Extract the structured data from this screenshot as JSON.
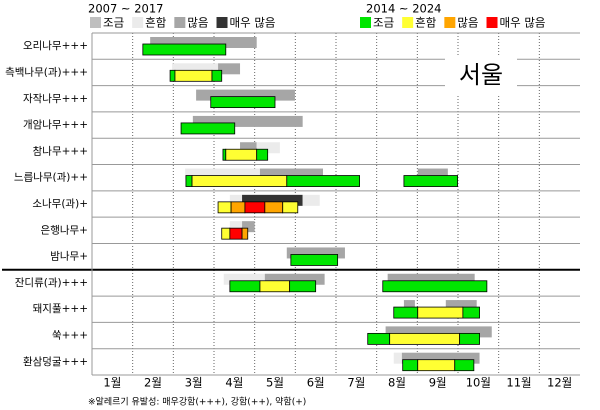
{
  "chart_data": {
    "type": "pollen-calendar",
    "legends": [
      {
        "title": "2007 ~ 2017",
        "items": [
          {
            "name": "조금",
            "color": "#bfbfbf"
          },
          {
            "name": "흔함",
            "color": "#ebebeb"
          },
          {
            "name": "많음",
            "color": "#a6a6a6"
          },
          {
            "name": "매우 많음",
            "color": "#333333"
          }
        ]
      },
      {
        "title": "2014 ~ 2024",
        "items": [
          {
            "name": "조금",
            "color": "#00e600"
          },
          {
            "name": "흔함",
            "color": "#ffff33"
          },
          {
            "name": "많음",
            "color": "#ffa500"
          },
          {
            "name": "매우 많음",
            "color": "#ff0000"
          }
        ]
      }
    ],
    "annotation": "서울",
    "footnote": "※알레르기 유발성: 매우강함(+++), 강함(++), 약함(+)",
    "xlim": [
      1,
      13
    ],
    "xticks": [
      {
        "value": 1.5,
        "label": "1월"
      },
      {
        "value": 2.5,
        "label": "2월"
      },
      {
        "value": 3.5,
        "label": "3월"
      },
      {
        "value": 4.5,
        "label": "4월"
      },
      {
        "value": 5.5,
        "label": "5월"
      },
      {
        "value": 6.5,
        "label": "6월"
      },
      {
        "value": 7.5,
        "label": "7월"
      },
      {
        "value": 8.5,
        "label": "8월"
      },
      {
        "value": 9.5,
        "label": "9월"
      },
      {
        "value": 10.5,
        "label": "10월"
      },
      {
        "value": 11.5,
        "label": "11월"
      },
      {
        "value": 12.5,
        "label": "12월"
      }
    ],
    "rows": [
      {
        "name": "오리나무+++",
        "past": [
          {
            "start": 2.43,
            "end": 5.05,
            "level": 2
          }
        ],
        "recent": [
          {
            "start": 2.25,
            "end": 4.29,
            "level": 0
          }
        ]
      },
      {
        "name": "측백나무(과)+++",
        "past": [
          {
            "start": 2.97,
            "end": 4.1,
            "level": 1
          },
          {
            "start": 4.1,
            "end": 4.64,
            "level": 2
          }
        ],
        "recent": [
          {
            "start": 2.92,
            "end": 3.04,
            "level": 0
          },
          {
            "start": 3.04,
            "end": 3.95,
            "level": 1
          },
          {
            "start": 3.95,
            "end": 4.19,
            "level": 0
          }
        ]
      },
      {
        "name": "자작나무+++",
        "past": [
          {
            "start": 3.56,
            "end": 5.99,
            "level": 2
          }
        ],
        "recent": [
          {
            "start": 3.92,
            "end": 5.5,
            "level": 0
          }
        ]
      },
      {
        "name": "개암나무+++",
        "past": [
          {
            "start": 3.48,
            "end": 6.18,
            "level": 2
          }
        ],
        "recent": [
          {
            "start": 3.19,
            "end": 4.51,
            "level": 0
          }
        ]
      },
      {
        "name": "참나무+++",
        "past": [
          {
            "start": 4.64,
            "end": 5.05,
            "level": 2
          },
          {
            "start": 5.05,
            "end": 5.62,
            "level": 1
          }
        ],
        "recent": [
          {
            "start": 4.22,
            "end": 4.29,
            "level": 0
          },
          {
            "start": 4.29,
            "end": 5.05,
            "level": 1
          },
          {
            "start": 5.05,
            "end": 5.32,
            "level": 0
          }
        ]
      },
      {
        "name": "느릅나무(과)++",
        "past": [
          {
            "start": 3.29,
            "end": 5.13,
            "level": 1
          },
          {
            "start": 5.13,
            "end": 6.68,
            "level": 2
          },
          {
            "start": 9.01,
            "end": 9.75,
            "level": 2
          }
        ],
        "recent": [
          {
            "start": 3.31,
            "end": 3.46,
            "level": 0
          },
          {
            "start": 3.46,
            "end": 5.79,
            "level": 1
          },
          {
            "start": 5.79,
            "end": 7.58,
            "level": 0
          },
          {
            "start": 8.67,
            "end": 9.99,
            "level": 0
          }
        ]
      },
      {
        "name": "소나무(과)+",
        "past": [
          {
            "start": 4.39,
            "end": 4.69,
            "level": 1
          },
          {
            "start": 4.69,
            "end": 6.18,
            "level": 3
          },
          {
            "start": 6.18,
            "end": 6.6,
            "level": 1
          }
        ],
        "recent": [
          {
            "start": 4.1,
            "end": 4.42,
            "level": 1
          },
          {
            "start": 4.42,
            "end": 4.76,
            "level": 2
          },
          {
            "start": 4.76,
            "end": 5.25,
            "level": 3
          },
          {
            "start": 5.25,
            "end": 5.69,
            "level": 2
          },
          {
            "start": 5.69,
            "end": 6.06,
            "level": 1
          }
        ]
      },
      {
        "name": "은행나무+",
        "past": [
          {
            "start": 4.39,
            "end": 4.69,
            "level": 1
          },
          {
            "start": 4.69,
            "end": 5.0,
            "level": 2
          }
        ],
        "recent": [
          {
            "start": 4.19,
            "end": 4.39,
            "level": 1
          },
          {
            "start": 4.39,
            "end": 4.69,
            "level": 3
          },
          {
            "start": 4.69,
            "end": 4.83,
            "level": 2
          }
        ]
      },
      {
        "name": "밤나무+",
        "past": [
          {
            "start": 5.79,
            "end": 7.22,
            "level": 2
          }
        ],
        "recent": [
          {
            "start": 5.89,
            "end": 7.04,
            "level": 0
          }
        ]
      },
      {
        "name": "잔디류(과)+++",
        "past": [
          {
            "start": 4.24,
            "end": 5.25,
            "level": 1
          },
          {
            "start": 5.25,
            "end": 6.72,
            "level": 2
          },
          {
            "start": 8.27,
            "end": 10.41,
            "level": 2
          }
        ],
        "recent": [
          {
            "start": 4.39,
            "end": 5.13,
            "level": 0
          },
          {
            "start": 5.13,
            "end": 5.86,
            "level": 1
          },
          {
            "start": 5.86,
            "end": 6.5,
            "level": 0
          },
          {
            "start": 8.15,
            "end": 10.71,
            "level": 0
          }
        ]
      },
      {
        "name": "돼지풀+++",
        "past": [
          {
            "start": 8.67,
            "end": 8.94,
            "level": 2
          },
          {
            "start": 9.7,
            "end": 10.46,
            "level": 2
          }
        ],
        "recent": [
          {
            "start": 8.42,
            "end": 9.01,
            "level": 0
          },
          {
            "start": 9.01,
            "end": 10.12,
            "level": 1
          },
          {
            "start": 10.12,
            "end": 10.53,
            "level": 0
          }
        ]
      },
      {
        "name": "쑥+++",
        "past": [
          {
            "start": 8.22,
            "end": 10.83,
            "level": 2
          }
        ],
        "recent": [
          {
            "start": 7.78,
            "end": 8.32,
            "level": 0
          },
          {
            "start": 8.32,
            "end": 10.04,
            "level": 1
          },
          {
            "start": 10.04,
            "end": 10.53,
            "level": 0
          }
        ]
      },
      {
        "name": "환삼덩굴+++",
        "past": [
          {
            "start": 8.42,
            "end": 8.62,
            "level": 1
          },
          {
            "start": 8.62,
            "end": 10.53,
            "level": 2
          }
        ],
        "recent": [
          {
            "start": 8.64,
            "end": 9.01,
            "level": 0
          },
          {
            "start": 9.01,
            "end": 9.92,
            "level": 1
          },
          {
            "start": 9.92,
            "end": 10.39,
            "level": 0
          }
        ]
      }
    ]
  }
}
